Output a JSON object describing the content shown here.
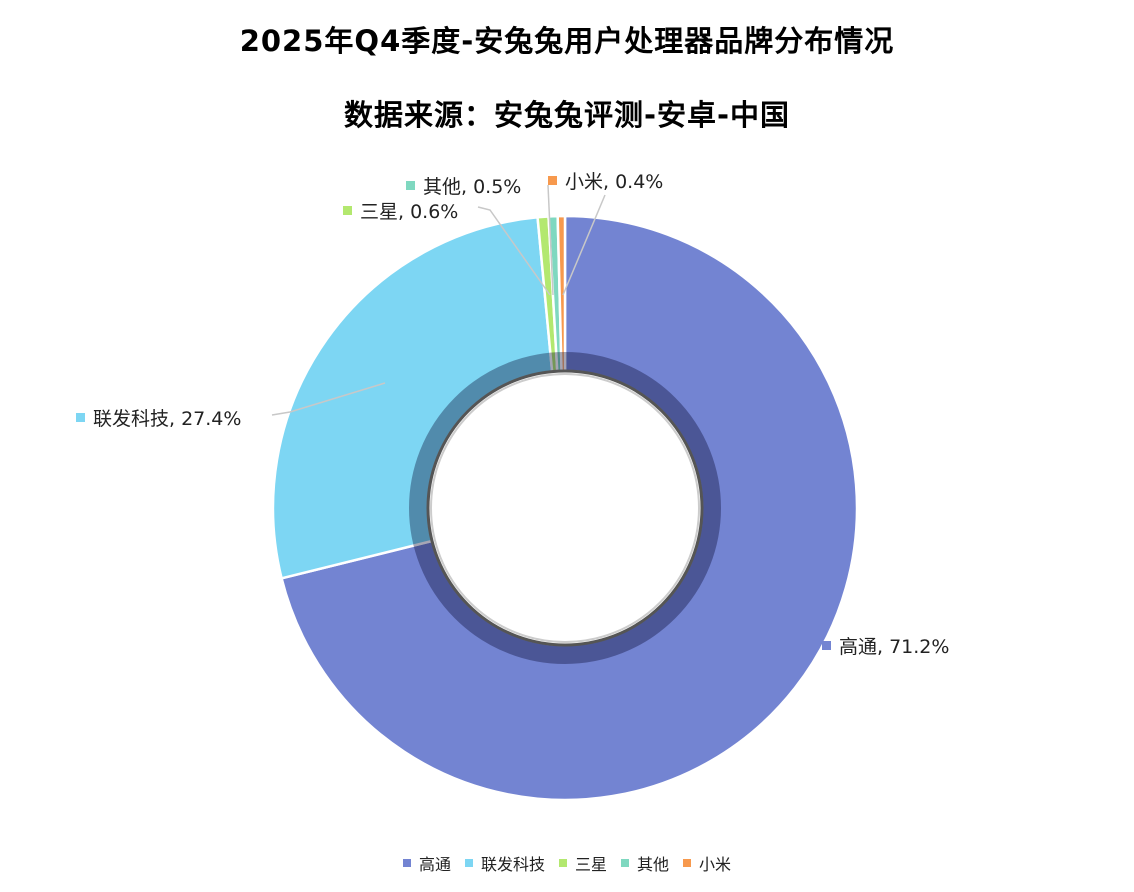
{
  "chart_data": {
    "type": "pie",
    "variant": "donut",
    "title": "2025年Q4季度-安兔兔用户处理器品牌分布情况",
    "subtitle": "数据来源：安兔兔评测-安卓-中国",
    "categories": [
      "高通",
      "联发科技",
      "三星",
      "其他",
      "小米"
    ],
    "values": [
      71.2,
      27.4,
      0.6,
      0.5,
      0.4
    ],
    "data_labels": [
      "高通, 71.2%",
      "联发科技, 27.4%",
      "三星, 0.6%",
      "其他, 0.5%",
      "小米, 0.4%"
    ],
    "colors": [
      "#7384d2",
      "#7dd6f3",
      "#b3e86f",
      "#7fd8c0",
      "#f7994d"
    ],
    "legend_position": "bottom",
    "start_angle": "top, clockwise"
  }
}
